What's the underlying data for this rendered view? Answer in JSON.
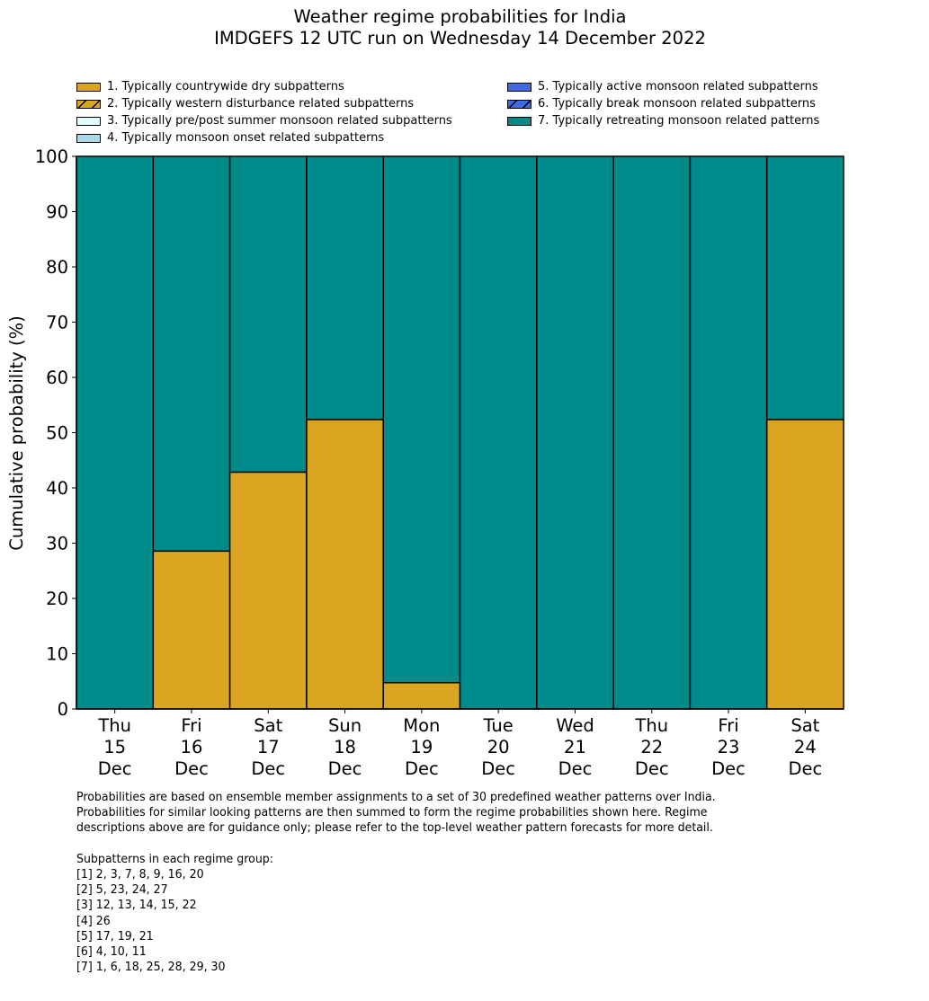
{
  "chart_data": {
    "type": "bar",
    "stacked": true,
    "title": "Weather regime probabilities for India",
    "subtitle": "IMDGEFS 12 UTC run on Wednesday 14 December 2022",
    "xlabel": "",
    "ylabel": "Cumulative probability (%)",
    "ylim": [
      0,
      100
    ],
    "yticks": [
      0,
      10,
      20,
      30,
      40,
      50,
      60,
      70,
      80,
      90,
      100
    ],
    "grid": false,
    "legend_position": "top",
    "categories": [
      [
        "Thu",
        "15",
        "Dec"
      ],
      [
        "Fri",
        "16",
        "Dec"
      ],
      [
        "Sat",
        "17",
        "Dec"
      ],
      [
        "Sun",
        "18",
        "Dec"
      ],
      [
        "Mon",
        "19",
        "Dec"
      ],
      [
        "Tue",
        "20",
        "Dec"
      ],
      [
        "Wed",
        "21",
        "Dec"
      ],
      [
        "Thu",
        "22",
        "Dec"
      ],
      [
        "Fri",
        "23",
        "Dec"
      ],
      [
        "Sat",
        "24",
        "Dec"
      ]
    ],
    "series": [
      {
        "name": "1. Typically countrywide dry subpatterns",
        "color": "#DAA520",
        "hatch": false,
        "values": [
          0,
          28.57,
          42.86,
          52.38,
          4.76,
          0,
          0,
          0,
          0,
          52.38
        ]
      },
      {
        "name": "2. Typically western disturbance related subpatterns",
        "color": "#DAA520",
        "hatch": true,
        "values": [
          0,
          0,
          0,
          0,
          0,
          0,
          0,
          0,
          0,
          0
        ]
      },
      {
        "name": "3. Typically pre/post summer monsoon related subpatterns",
        "color": "#E0FFFF",
        "hatch": false,
        "values": [
          0,
          0,
          0,
          0,
          0,
          0,
          0,
          0,
          0,
          0
        ]
      },
      {
        "name": "4. Typically monsoon onset related subpatterns",
        "color": "#ADD8E6",
        "hatch": false,
        "values": [
          0,
          0,
          0,
          0,
          0,
          0,
          0,
          0,
          0,
          0
        ]
      },
      {
        "name": "5. Typically active monsoon related subpatterns",
        "color": "#4169E1",
        "hatch": false,
        "values": [
          0,
          0,
          0,
          0,
          0,
          0,
          0,
          0,
          0,
          0
        ]
      },
      {
        "name": "6. Typically break monsoon related subpatterns",
        "color": "#4169E1",
        "hatch": true,
        "values": [
          0,
          0,
          0,
          0,
          0,
          0,
          0,
          0,
          0,
          0
        ]
      },
      {
        "name": "7. Typically retreating monsoon related patterns",
        "color": "#008B8B",
        "hatch": false,
        "values": [
          100,
          71.43,
          57.14,
          47.62,
          95.24,
          100,
          100,
          100,
          100,
          47.62
        ]
      }
    ]
  },
  "footnote": {
    "paragraph": [
      "Probabilities are based on ensemble member assignments to a set of 30 predefined weather patterns over India.",
      "Probabilities for similar looking patterns are then summed to form the regime probabilities shown here. Regime",
      "descriptions above are for guidance only; please refer to the top-level weather pattern forecasts for more detail."
    ],
    "groups_heading": "Subpatterns in each regime group:",
    "groups": [
      "[1] 2, 3, 7, 8, 9, 16, 20",
      "[2] 5, 23, 24, 27",
      "[3] 12, 13, 14, 15, 22",
      "[4] 26",
      "[5] 17, 19, 21",
      "[6] 4, 10, 11",
      "[7] 1, 6, 18, 25, 28, 29, 30"
    ]
  }
}
